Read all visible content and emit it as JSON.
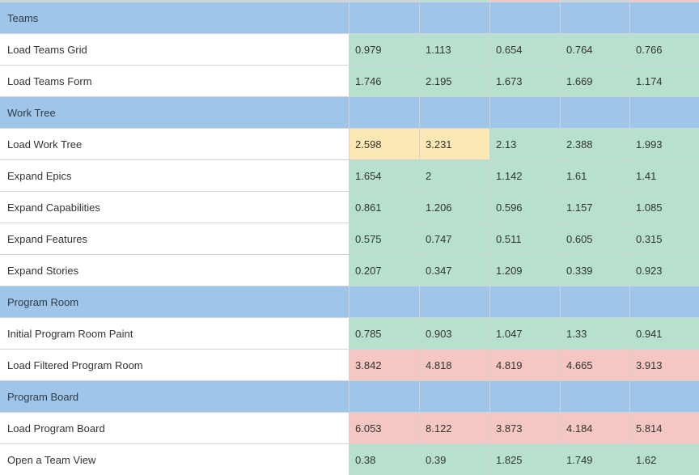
{
  "colors": {
    "section": "#9fc5e8",
    "good": "#b7e1cd",
    "warning": "#fce8b2",
    "bad": "#f4c7c3",
    "label_bg": "#ffffff",
    "gridline": "#cfd4da"
  },
  "rows": [
    {
      "type": "section",
      "label": "Teams"
    },
    {
      "type": "data",
      "label": "Load Teams Grid",
      "values": [
        "0.979",
        "1.113",
        "0.654",
        "0.764",
        "0.766"
      ],
      "status": [
        "good",
        "good",
        "good",
        "good",
        "good"
      ]
    },
    {
      "type": "data",
      "label": "Load Teams Form",
      "values": [
        "1.746",
        "2.195",
        "1.673",
        "1.669",
        "1.174"
      ],
      "status": [
        "good",
        "good",
        "good",
        "good",
        "good"
      ]
    },
    {
      "type": "section",
      "label": "Work Tree"
    },
    {
      "type": "data",
      "label": "Load Work Tree",
      "values": [
        "2.598",
        "3.231",
        "2.13",
        "2.388",
        "1.993"
      ],
      "status": [
        "warning",
        "warning",
        "good",
        "good",
        "good"
      ]
    },
    {
      "type": "data",
      "label": "Expand Epics",
      "values": [
        "1.654",
        "2",
        "1.142",
        "1.61",
        "1.41"
      ],
      "status": [
        "good",
        "good",
        "good",
        "good",
        "good"
      ]
    },
    {
      "type": "data",
      "label": "Expand Capabilities",
      "values": [
        "0.861",
        "1.206",
        "0.596",
        "1.157",
        "1.085"
      ],
      "status": [
        "good",
        "good",
        "good",
        "good",
        "good"
      ]
    },
    {
      "type": "data",
      "label": "Expand Features",
      "values": [
        "0.575",
        "0.747",
        "0.511",
        "0.605",
        "0.315"
      ],
      "status": [
        "good",
        "good",
        "good",
        "good",
        "good"
      ]
    },
    {
      "type": "data",
      "label": "Expand Stories",
      "values": [
        "0.207",
        "0.347",
        "1.209",
        "0.339",
        "0.923"
      ],
      "status": [
        "good",
        "good",
        "good",
        "good",
        "good"
      ]
    },
    {
      "type": "section",
      "label": "Program Room"
    },
    {
      "type": "data",
      "label": "Initial Program Room Paint",
      "values": [
        "0.785",
        "0.903",
        "1.047",
        "1.33",
        "0.941"
      ],
      "status": [
        "good",
        "good",
        "good",
        "good",
        "good"
      ]
    },
    {
      "type": "data",
      "label": "Load Filtered Program Room",
      "values": [
        "3.842",
        "4.818",
        "4.819",
        "4.665",
        "3.913"
      ],
      "status": [
        "bad",
        "bad",
        "bad",
        "bad",
        "bad"
      ]
    },
    {
      "type": "section",
      "label": "Program Board"
    },
    {
      "type": "data",
      "label": "Load Program Board",
      "values": [
        "6.053",
        "8.122",
        "3.873",
        "4.184",
        "5.814"
      ],
      "status": [
        "bad",
        "bad",
        "bad",
        "bad",
        "bad"
      ]
    },
    {
      "type": "data",
      "label": "Open a Team View",
      "values": [
        "0.38",
        "0.39",
        "1.825",
        "1.749",
        "1.62"
      ],
      "status": [
        "good",
        "good",
        "good",
        "good",
        "good"
      ]
    }
  ]
}
